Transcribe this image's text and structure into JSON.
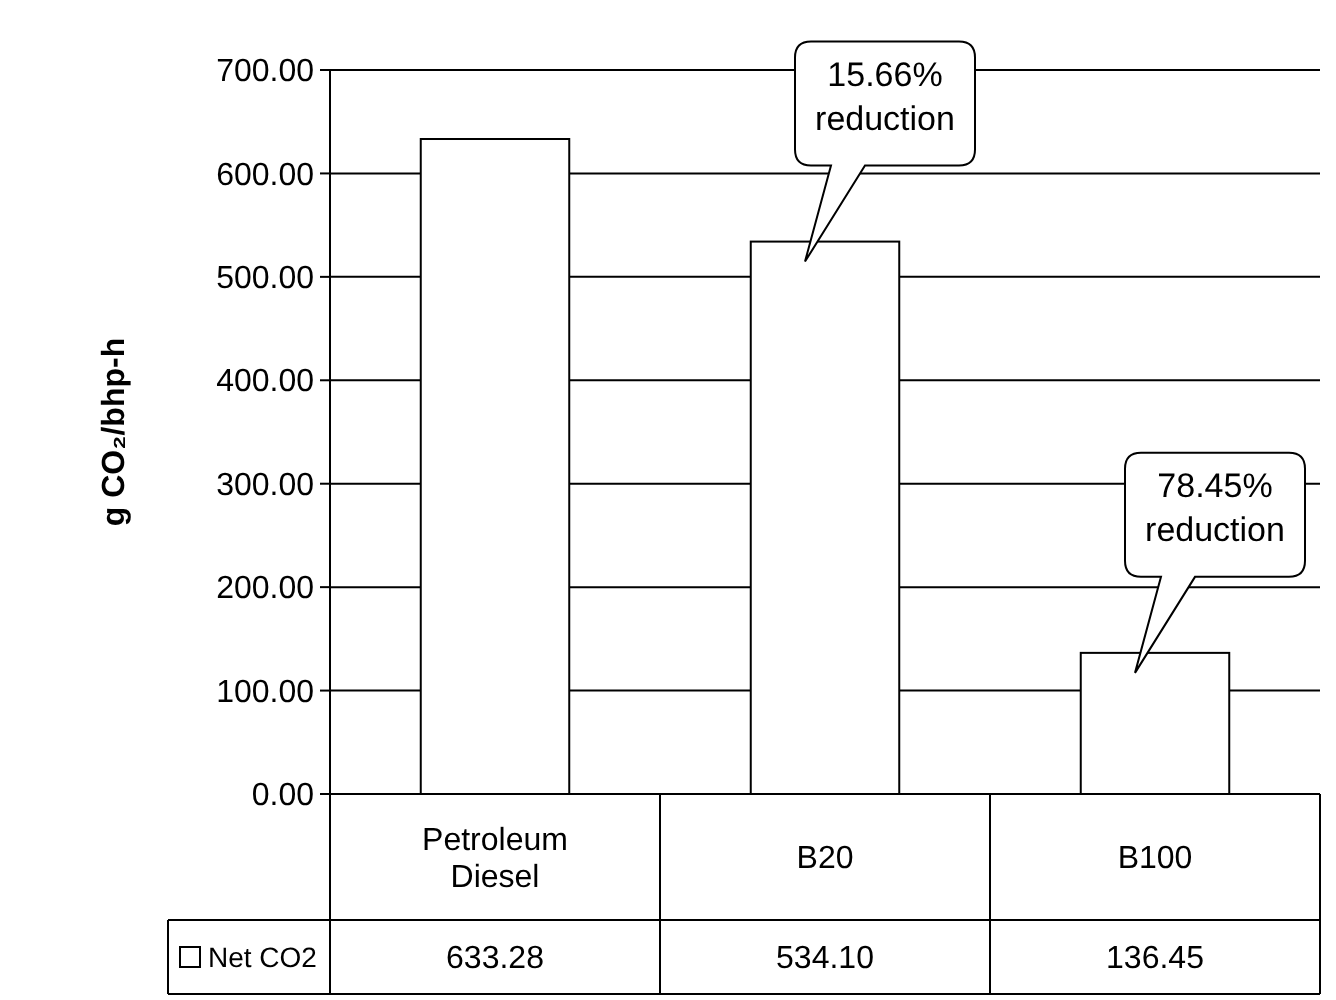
{
  "chart_data": {
    "type": "bar",
    "ylabel": "g CO₂/bhp-h",
    "categories": [
      "Petroleum Diesel",
      "B20",
      "B100"
    ],
    "series": [
      {
        "name": "Net CO2",
        "color": "#ffffff",
        "values": [
          633.28,
          534.1,
          136.45
        ],
        "value_labels": [
          "633.28",
          "534.10",
          "136.45"
        ]
      }
    ],
    "ylim": [
      0,
      700
    ],
    "yticks": [
      {
        "value": 0,
        "label": "0.00"
      },
      {
        "value": 100,
        "label": "100.00"
      },
      {
        "value": 200,
        "label": "200.00"
      },
      {
        "value": 300,
        "label": "300.00"
      },
      {
        "value": 400,
        "label": "400.00"
      },
      {
        "value": 500,
        "label": "500.00"
      },
      {
        "value": 600,
        "label": "600.00"
      },
      {
        "value": 700,
        "label": "700.00"
      }
    ],
    "grid": "y",
    "annotations": [
      "15.66% reduction",
      "78.45% reduction"
    ]
  }
}
